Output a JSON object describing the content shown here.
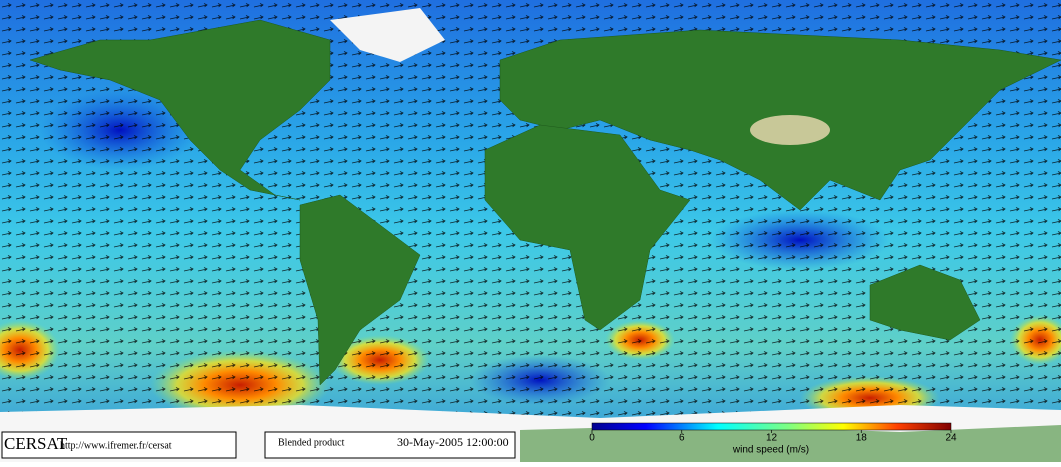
{
  "footer": {
    "brand": "CERSAT",
    "url": "http://www.ifremer.fr/cersat",
    "product": "Blended product",
    "date": "30-May-2005 12:00:00"
  },
  "colorbar": {
    "label": "wind speed (m/s)",
    "lim": [
      0,
      24
    ],
    "ticks": [
      0,
      6,
      12,
      18,
      24
    ]
  }
}
